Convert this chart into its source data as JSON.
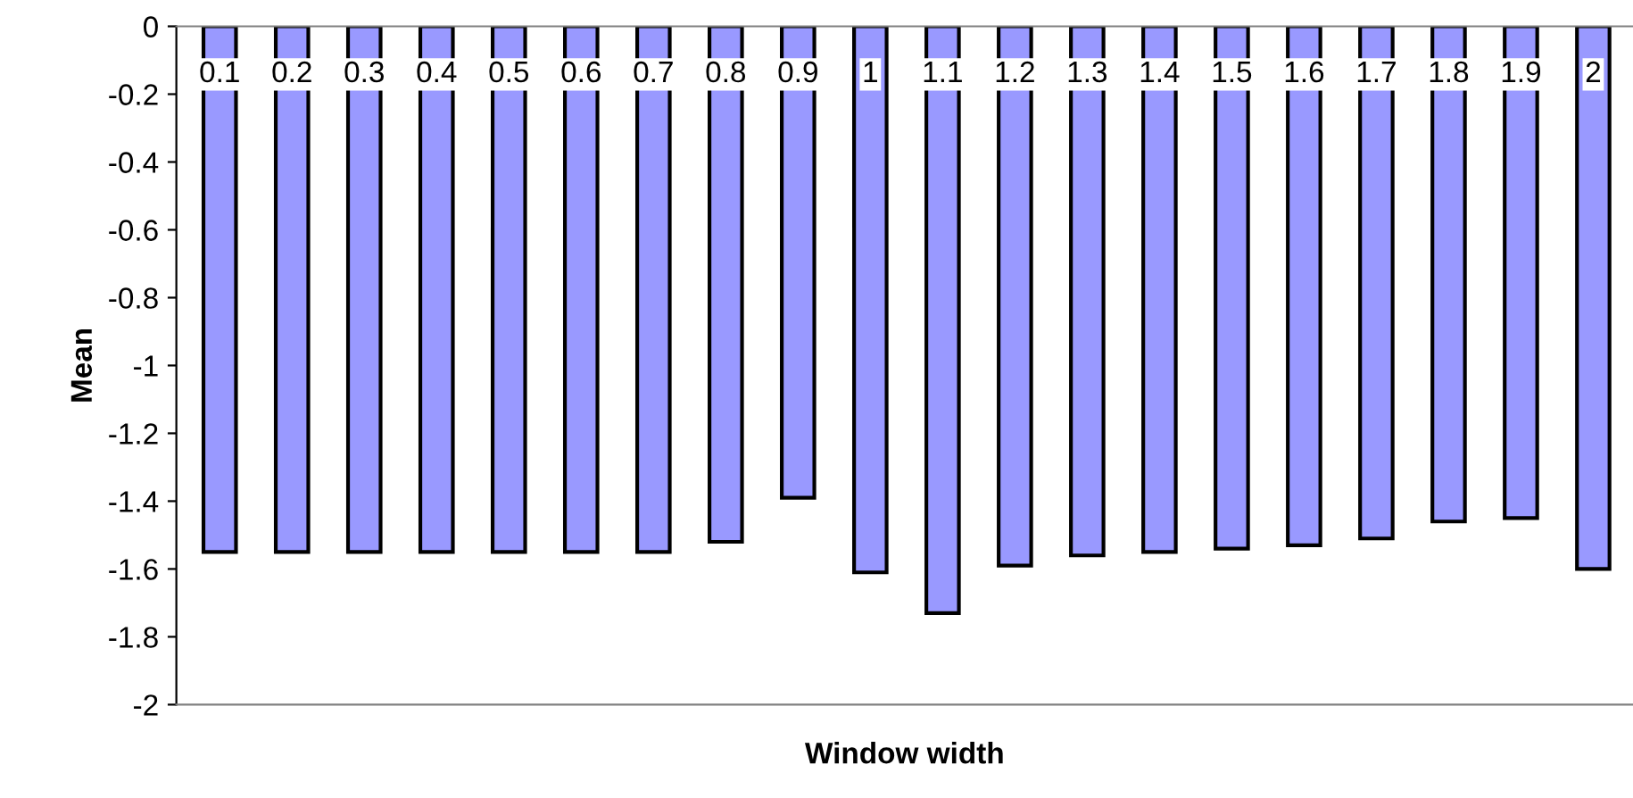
{
  "chart_data": {
    "type": "bar",
    "xlabel": "Window width",
    "ylabel": "Mean",
    "categories": [
      "0.1",
      "0.2",
      "0.3",
      "0.4",
      "0.5",
      "0.6",
      "0.7",
      "0.8",
      "0.9",
      "1",
      "1.1",
      "1.2",
      "1.3",
      "1.4",
      "1.5",
      "1.6",
      "1.7",
      "1.8",
      "1.9",
      "2"
    ],
    "values": [
      -1.55,
      -1.55,
      -1.55,
      -1.55,
      -1.55,
      -1.55,
      -1.55,
      -1.52,
      -1.39,
      -1.61,
      -1.73,
      -1.59,
      -1.56,
      -1.55,
      -1.54,
      -1.53,
      -1.51,
      -1.46,
      -1.45,
      -1.6
    ],
    "color": "#9999ff",
    "ylim": [
      -2,
      0
    ],
    "yticks": [
      0,
      -0.2,
      -0.4,
      -0.6,
      -0.8,
      -1,
      -1.2,
      -1.4,
      -1.6,
      -1.8,
      -2
    ],
    "grid": false,
    "legend": false
  }
}
